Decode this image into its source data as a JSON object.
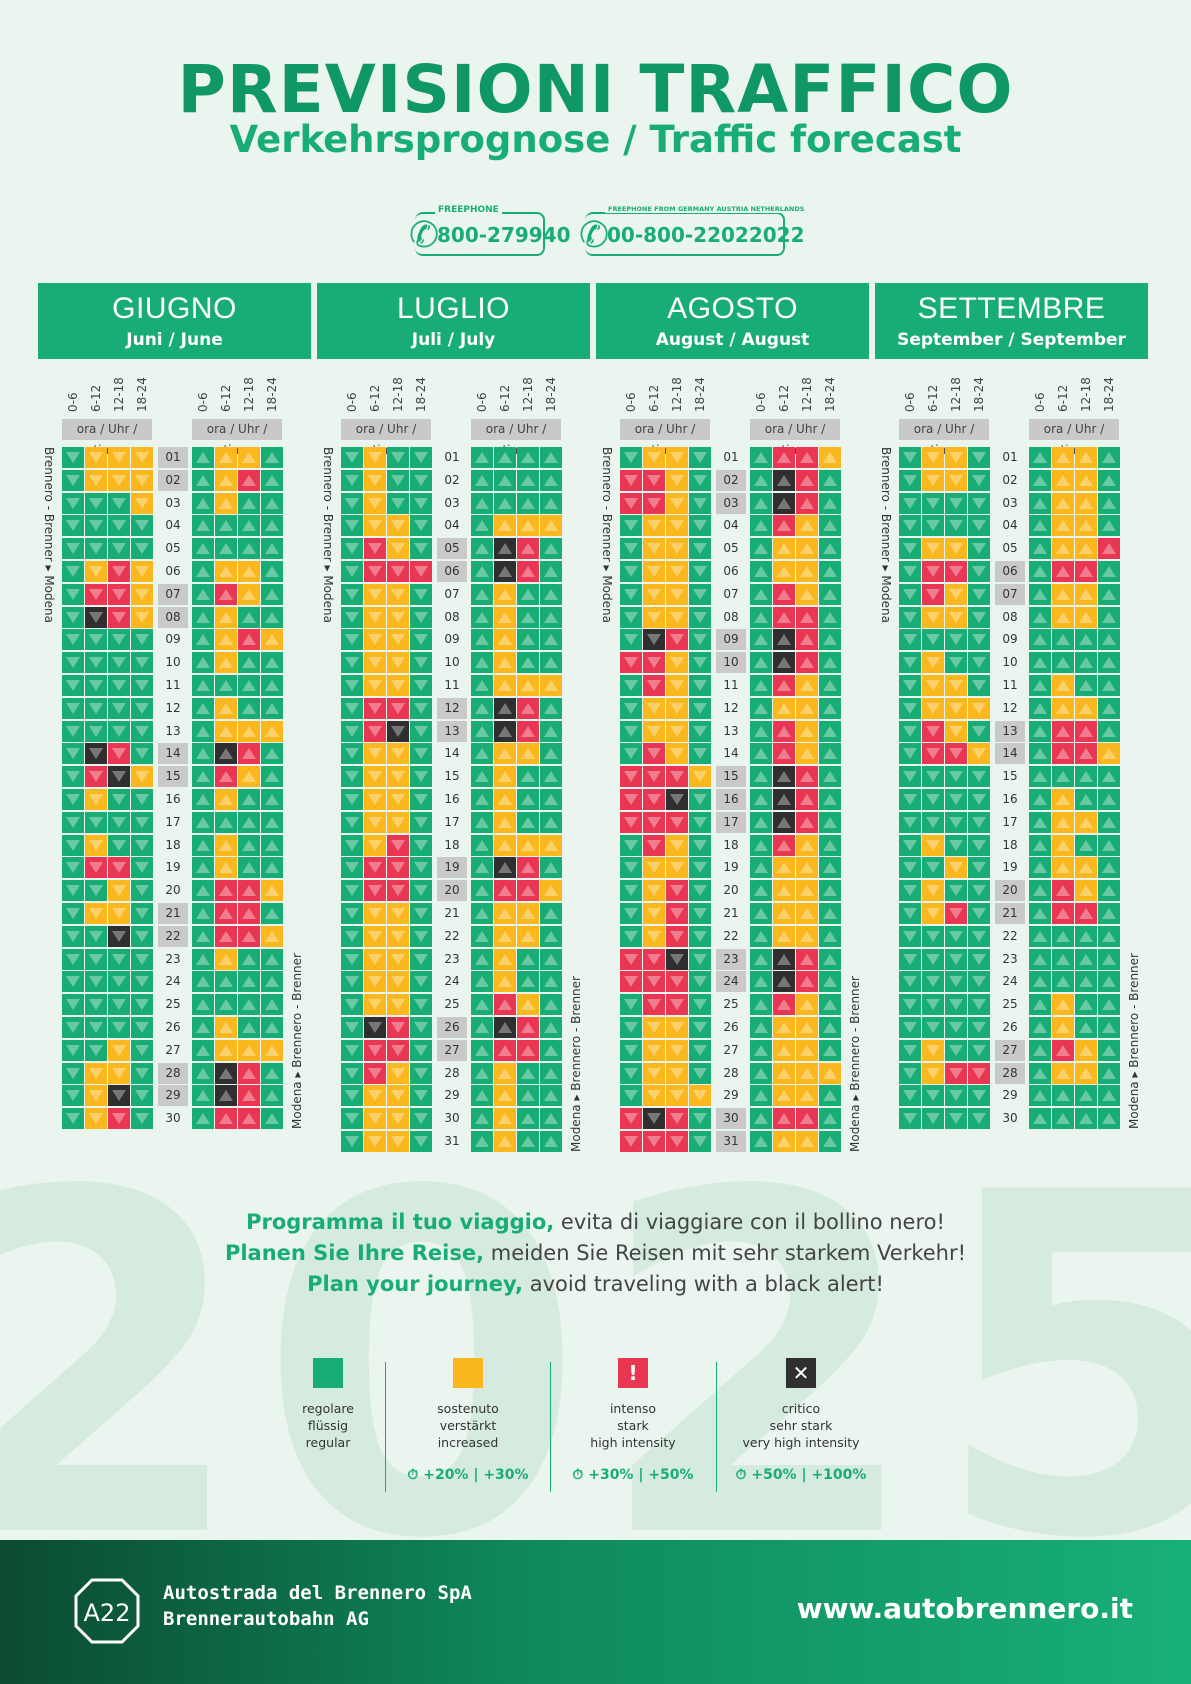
{
  "header": {
    "title": "PREVISIONI TRAFFICO",
    "subtitle": "Verkehrsprognose / Traffic forecast"
  },
  "phones": [
    {
      "caption": "FREEPHONE",
      "number": "800-279940"
    },
    {
      "caption": "FREEPHONE FROM GERMANY AUSTRIA NETHERLANDS",
      "number": "00-800-22022022"
    }
  ],
  "background_year": "2025",
  "grid_labels": {
    "time_slots": [
      "0-6",
      "6-12",
      "12-18",
      "18-24"
    ],
    "time_caption": "ora / Uhr / time",
    "direction_south": "Brennero - Brenner ▸ Modena",
    "direction_north": "Modena ▸ Brennero - Brenner"
  },
  "months": [
    {
      "name": "GIUGNO",
      "subtitle": "Juni / June",
      "days": [
        "01",
        "02",
        "03",
        "04",
        "05",
        "06",
        "07",
        "08",
        "09",
        "10",
        "11",
        "12",
        "13",
        "14",
        "15",
        "16",
        "17",
        "18",
        "19",
        "20",
        "21",
        "22",
        "23",
        "24",
        "25",
        "26",
        "27",
        "28",
        "29",
        "30"
      ],
      "highlighted": [
        "01",
        "02",
        "07",
        "08",
        "14",
        "15",
        "21",
        "22",
        "28",
        "29"
      ],
      "south": [
        "GYYY",
        "GYYY",
        "GGGY",
        "GGGG",
        "GGGG",
        "GYRY",
        "GRRY",
        "GBRY",
        "GGGG",
        "GGGG",
        "GGGG",
        "GGGG",
        "GGGG",
        "GBRG",
        "GRBY",
        "GYGG",
        "GGGG",
        "GYGG",
        "GRRG",
        "GGYG",
        "GYYG",
        "GGBG",
        "GGGG",
        "GGGG",
        "GGGG",
        "GGGG",
        "GGYG",
        "GYYG",
        "GYBG",
        "GYRG"
      ],
      "north": [
        "GYYG",
        "GYRG",
        "GYGG",
        "GGGG",
        "GGGG",
        "GYYG",
        "GRYG",
        "GYGG",
        "GYRY",
        "GYGG",
        "GGGG",
        "GYGG",
        "GYYY",
        "GBRG",
        "GRYG",
        "GYGG",
        "GGGG",
        "GYGG",
        "GYGG",
        "GRRY",
        "GRRG",
        "GRRY",
        "GYGG",
        "GGGG",
        "GGGG",
        "GYGG",
        "GYYY",
        "GBRG",
        "GBRG",
        "GRRG"
      ]
    },
    {
      "name": "LUGLIO",
      "subtitle": "Juli / July",
      "days": [
        "01",
        "02",
        "03",
        "04",
        "05",
        "06",
        "07",
        "08",
        "09",
        "10",
        "11",
        "12",
        "13",
        "14",
        "15",
        "16",
        "17",
        "18",
        "19",
        "20",
        "21",
        "22",
        "23",
        "24",
        "25",
        "26",
        "27",
        "28",
        "29",
        "30",
        "31"
      ],
      "highlighted": [
        "05",
        "06",
        "12",
        "13",
        "19",
        "20",
        "26",
        "27"
      ],
      "south": [
        "GYGG",
        "GYGG",
        "GYGG",
        "GYYG",
        "GRYG",
        "GRRR",
        "GYYG",
        "GYYG",
        "GYYG",
        "GYYG",
        "GYYG",
        "GRRG",
        "GRBG",
        "GYYG",
        "GYYG",
        "GYYG",
        "GYYG",
        "GYRG",
        "GRRG",
        "GRRG",
        "GYYG",
        "GYYG",
        "GYYG",
        "GYYG",
        "GYYG",
        "GBRG",
        "GRRG",
        "GRYG",
        "GYYG",
        "GYYG",
        "GYYG"
      ],
      "north": [
        "GGGG",
        "GGGG",
        "GGGG",
        "GYYY",
        "GBRG",
        "GBRG",
        "GYGG",
        "GYGG",
        "GYGG",
        "GYGG",
        "GYYY",
        "GBRG",
        "GBRG",
        "GYYG",
        "GYGG",
        "GYGG",
        "GYGG",
        "GYYY",
        "GBRG",
        "GRRY",
        "GYYG",
        "GYYG",
        "GYGG",
        "GYGG",
        "GRYG",
        "GBRG",
        "GRRG",
        "GYGG",
        "GYGG",
        "GYGG",
        "GYGG"
      ]
    },
    {
      "name": "AGOSTO",
      "subtitle": "August / August",
      "days": [
        "01",
        "02",
        "03",
        "04",
        "05",
        "06",
        "07",
        "08",
        "09",
        "10",
        "11",
        "12",
        "13",
        "14",
        "15",
        "16",
        "17",
        "18",
        "19",
        "20",
        "21",
        "22",
        "23",
        "24",
        "25",
        "26",
        "27",
        "28",
        "29",
        "30",
        "31"
      ],
      "highlighted": [
        "02",
        "03",
        "09",
        "10",
        "15",
        "16",
        "17",
        "23",
        "24",
        "30",
        "31"
      ],
      "south": [
        "GYYG",
        "RRYG",
        "RRYG",
        "GYYG",
        "GYYG",
        "GYYG",
        "GYYG",
        "GYYG",
        "GBRG",
        "RRYG",
        "GRYG",
        "GYYG",
        "GYYG",
        "GRYG",
        "RRRY",
        "RRBG",
        "RRRG",
        "GRYG",
        "GYYG",
        "GYRG",
        "GYRG",
        "GYRG",
        "RRBG",
        "RRRG",
        "GRRG",
        "GYYG",
        "GYYG",
        "GYYG",
        "GYYY",
        "RBRG",
        "RRRG"
      ],
      "north": [
        "GRRY",
        "GBRG",
        "GBRG",
        "GRYG",
        "GYYG",
        "GYYG",
        "GRYG",
        "GRRG",
        "GBRG",
        "GBRG",
        "GRYG",
        "GYYG",
        "GRYG",
        "GRYG",
        "GBRG",
        "GBRG",
        "GBRG",
        "GRYG",
        "GYYG",
        "GYYG",
        "GYYG",
        "GYYG",
        "GBRG",
        "GBRG",
        "GRYG",
        "GYYG",
        "GYYG",
        "GYYY",
        "GYYG",
        "GRRG",
        "GYYG"
      ]
    },
    {
      "name": "SETTEMBRE",
      "subtitle": "September / September",
      "days": [
        "01",
        "02",
        "03",
        "04",
        "05",
        "06",
        "07",
        "08",
        "09",
        "10",
        "11",
        "12",
        "13",
        "14",
        "15",
        "16",
        "17",
        "18",
        "19",
        "20",
        "21",
        "22",
        "23",
        "24",
        "25",
        "26",
        "27",
        "28",
        "29",
        "30"
      ],
      "highlighted": [
        "06",
        "07",
        "13",
        "14",
        "20",
        "21",
        "27",
        "28"
      ],
      "south": [
        "GYYG",
        "GYYG",
        "GGGG",
        "GGGG",
        "GYYG",
        "GRRG",
        "GRYG",
        "GYYG",
        "GGGG",
        "GYGG",
        "GYYG",
        "GYYY",
        "GRYG",
        "GRRY",
        "GGGG",
        "GGGG",
        "GGGG",
        "GYGG",
        "GGYG",
        "GYGG",
        "GYRG",
        "GGGG",
        "GGGG",
        "GGGG",
        "GGGG",
        "GGGG",
        "GYGG",
        "GYRR",
        "GGGG",
        "GGGG"
      ],
      "north": [
        "GYYG",
        "GYYG",
        "GYYG",
        "GYYG",
        "GYYR",
        "GRRG",
        "GYYG",
        "GYYG",
        "GGGG",
        "GGGG",
        "GYGG",
        "GYYG",
        "GRRG",
        "GRRY",
        "GGGG",
        "GYGG",
        "GYYG",
        "GYGG",
        "GYYG",
        "GRYG",
        "GRRG",
        "GGGG",
        "GGGG",
        "GGGG",
        "GYGG",
        "GYGG",
        "GRYG",
        "GYYG",
        "GGGG",
        "GGGG"
      ]
    }
  ],
  "slogan": [
    {
      "bold": "Programma il tuo viaggio,",
      "rest": "evita di viaggiare con il bollino nero!"
    },
    {
      "bold": "Planen Sie Ihre Reise,",
      "rest": "meiden Sie Reisen mit sehr starkem Verkehr!"
    },
    {
      "bold": "Plan your journey,",
      "rest": "avoid traveling with a black alert!"
    }
  ],
  "legend": [
    {
      "color": "#19ad76",
      "symbol": "",
      "lines": [
        "regolare",
        "flüssig",
        "regular"
      ],
      "pct": ""
    },
    {
      "color": "#fbb81e",
      "symbol": "",
      "lines": [
        "sostenuto",
        "verstärkt",
        "increased"
      ],
      "pct": "+20% | +30%"
    },
    {
      "color": "#e93753",
      "symbol": "!",
      "lines": [
        "intenso",
        "stark",
        "high intensity"
      ],
      "pct": "+30% | +50%"
    },
    {
      "color": "#2f2f2f",
      "symbol": "✕",
      "lines": [
        "critico",
        "sehr stark",
        "very high intensity"
      ],
      "pct": "+50% | +100%"
    }
  ],
  "footer": {
    "logo_text": "A22",
    "company_it": "Autostrada del Brennero SpA",
    "company_de": "Brennerautobahn AG",
    "url": "www.autobrennero.it"
  },
  "colors": {
    "green": "#19ad76",
    "yellow": "#fbb81e",
    "red": "#e93753",
    "black": "#2f2f2f",
    "bg": "#ebf5ef"
  }
}
